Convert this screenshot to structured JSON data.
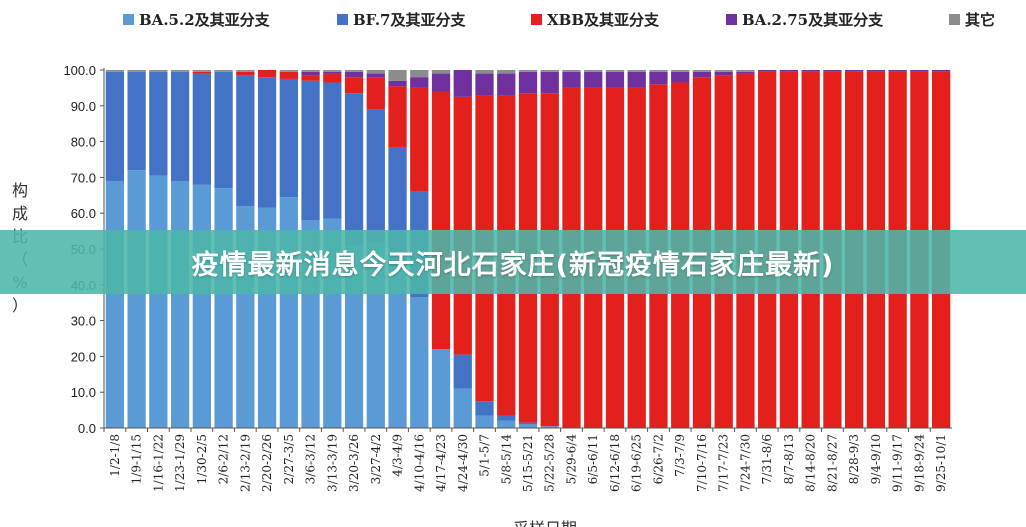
{
  "banner": {
    "title": "疫情最新消息今天河北石家庄(新冠疫情石家庄最新)"
  },
  "colors": {
    "BA52": "#5b9bd5",
    "BF7": "#4472c4",
    "XBB": "#e3201b",
    "BA275": "#7030a0",
    "other": "#8c8c8c"
  },
  "chart_data": {
    "type": "bar",
    "stacked": true,
    "title": "",
    "ylabel": "构成比（%）",
    "xlabel": "采样日期",
    "ylim": [
      0,
      100
    ],
    "yticks": [
      "0.0",
      "10.0",
      "20.0",
      "30.0",
      "40.0",
      "50.0",
      "60.0",
      "70.0",
      "80.0",
      "90.0",
      "100.0"
    ],
    "legend_position": "top",
    "categories": [
      "1/2-1/8",
      "1/9-1/15",
      "1/16-1/22",
      "1/23-1/29",
      "1/30-2/5",
      "2/6-2/12",
      "2/13-2/19",
      "2/20-2/26",
      "2/27-3/5",
      "3/6-3/12",
      "3/13-3/19",
      "3/20-3/26",
      "3/27-4/2",
      "4/3-4/9",
      "4/10-4/16",
      "4/17-4/23",
      "4/24-4/30",
      "5/1-5/7",
      "5/8-5/14",
      "5/15-5/21",
      "5/22-5/28",
      "5/29-6/4",
      "6/5-6/11",
      "6/12-6/18",
      "6/19-6/25",
      "6/26-7/2",
      "7/3-7/9",
      "7/10-7/16",
      "7/17-7/23",
      "7/24-7/30",
      "7/31-8/6",
      "8/7-8/13",
      "8/14-8/20",
      "8/21-8/27",
      "8/28-9/3",
      "9/4-9/10",
      "9/11-9/17",
      "9/18-9/24",
      "9/25-10/1"
    ],
    "series": [
      {
        "name": "BA.5.2及其亚分支",
        "color_key": "BA52",
        "values": [
          69,
          72,
          70.5,
          69,
          68,
          67,
          62,
          61.5,
          64.5,
          58,
          58.5,
          51,
          52,
          45,
          36.5,
          22,
          11,
          3.5,
          2,
          1,
          0.5,
          0,
          0,
          0,
          0,
          0,
          0,
          0,
          0,
          0,
          0,
          0,
          0,
          0,
          0,
          0,
          0,
          0,
          0
        ]
      },
      {
        "name": "BF.7及其亚分支",
        "color_key": "BF7",
        "values": [
          30.5,
          27.5,
          29,
          30.5,
          31,
          32.5,
          36.5,
          36.5,
          33,
          39,
          38,
          42.5,
          37,
          33.5,
          29.5,
          0,
          9.5,
          4,
          1.5,
          0.5,
          0,
          0,
          0,
          0,
          0,
          0,
          0,
          0,
          0,
          0,
          0,
          0,
          0,
          0,
          0,
          0,
          0,
          0,
          0
        ]
      },
      {
        "name": "XBB及其亚分支",
        "color_key": "XBB",
        "values": [
          0,
          0,
          0,
          0,
          0.5,
          0,
          1,
          2,
          2,
          1.5,
          2.5,
          4.5,
          9,
          17,
          29,
          72,
          72,
          85.5,
          89.5,
          92,
          93,
          95,
          95,
          95,
          95,
          96,
          96.5,
          98,
          98.5,
          99,
          99.5,
          99.5,
          99.5,
          99.5,
          99.5,
          99.5,
          99.5,
          99.5,
          99.5
        ]
      },
      {
        "name": "BA.2.75及其亚分支",
        "color_key": "BA275",
        "values": [
          0,
          0,
          0,
          0,
          0,
          0,
          0,
          0,
          0,
          1,
          0.5,
          1.5,
          1,
          1.5,
          3,
          5,
          7.5,
          6,
          6,
          6,
          6,
          4.5,
          4.5,
          4.5,
          4.5,
          3.5,
          3,
          1.5,
          1,
          0.5,
          0.5,
          0.5,
          0.5,
          0.5,
          0.5,
          0.5,
          0.5,
          0.5,
          0.5
        ]
      },
      {
        "name": "其它",
        "color_key": "other",
        "values": [
          0.5,
          0.5,
          0.5,
          0.5,
          0.5,
          0.5,
          0.5,
          0,
          0.5,
          0.5,
          0.5,
          0.5,
          1,
          3,
          2,
          1,
          0,
          1,
          1,
          0.5,
          0.5,
          0.5,
          0.5,
          0.5,
          0.5,
          0.5,
          0.5,
          0.5,
          0.5,
          0.5,
          0,
          0,
          0,
          0,
          0,
          0,
          0,
          0,
          0
        ]
      }
    ]
  }
}
